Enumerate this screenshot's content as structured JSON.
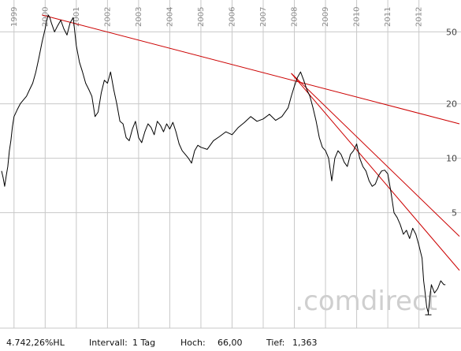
{
  "chart_data": {
    "type": "line",
    "title": "",
    "xlabel": "",
    "ylabel": "",
    "y_scale": "log",
    "ylim": [
      1.15,
      75
    ],
    "xlim": [
      1998.55,
      2013.35
    ],
    "x_tick_labels": [
      "1999",
      "2000",
      "2001",
      "2002",
      "2003",
      "2004",
      "2005",
      "2006",
      "2007",
      "2008",
      "2009",
      "2010",
      "2011",
      "2012"
    ],
    "y_ticks": [
      5,
      10,
      20,
      50
    ],
    "y_tick_labels": [
      "5",
      "10",
      "20",
      "50"
    ],
    "grid": true,
    "legend": "none",
    "series": [
      {
        "color": "#000000",
        "x": [
          1998.6,
          1998.65,
          1998.7,
          1998.75,
          1998.8,
          1998.85,
          1998.9,
          1998.95,
          1999.0,
          1999.1,
          1999.2,
          1999.3,
          1999.4,
          1999.5,
          1999.6,
          1999.7,
          1999.8,
          1999.9,
          2000.0,
          2000.05,
          2000.1,
          2000.15,
          2000.2,
          2000.3,
          2000.4,
          2000.5,
          2000.6,
          2000.7,
          2000.8,
          2000.9,
          2001.0,
          2001.1,
          2001.2,
          2001.3,
          2001.4,
          2001.5,
          2001.6,
          2001.7,
          2001.8,
          2001.9,
          2002.0,
          2002.1,
          2002.2,
          2002.3,
          2002.4,
          2002.5,
          2002.6,
          2002.7,
          2002.8,
          2002.9,
          2003.0,
          2003.1,
          2003.2,
          2003.3,
          2003.4,
          2003.5,
          2003.6,
          2003.7,
          2003.8,
          2003.9,
          2004.0,
          2004.1,
          2004.2,
          2004.3,
          2004.4,
          2004.5,
          2004.6,
          2004.7,
          2004.8,
          2004.9,
          2005.0,
          2005.2,
          2005.4,
          2005.6,
          2005.8,
          2006.0,
          2006.2,
          2006.4,
          2006.6,
          2006.8,
          2007.0,
          2007.2,
          2007.4,
          2007.6,
          2007.8,
          2007.9,
          2008.0,
          2008.1,
          2008.2,
          2008.3,
          2008.4,
          2008.5,
          2008.6,
          2008.7,
          2008.8,
          2008.9,
          2009.0,
          2009.1,
          2009.2,
          2009.3,
          2009.4,
          2009.5,
          2009.6,
          2009.7,
          2009.8,
          2009.9,
          2010.0,
          2010.1,
          2010.2,
          2010.3,
          2010.4,
          2010.5,
          2010.6,
          2010.7,
          2010.8,
          2010.9,
          2011.0,
          2011.1,
          2011.2,
          2011.3,
          2011.4,
          2011.5,
          2011.6,
          2011.7,
          2011.8,
          2011.9,
          2012.0,
          2012.1,
          2012.15,
          2012.2,
          2012.25,
          2012.3,
          2012.35,
          2012.4,
          2012.5,
          2012.6,
          2012.7,
          2012.8,
          2012.85
        ],
        "y": [
          8.5,
          7.8,
          7.0,
          8.0,
          9.0,
          11.0,
          12.5,
          15.0,
          17.0,
          18.5,
          20.0,
          21.0,
          22.0,
          24.0,
          26.0,
          30.0,
          36.0,
          44.0,
          52.0,
          58.0,
          62.0,
          60.0,
          56.0,
          50.0,
          54.0,
          58.0,
          52.0,
          48.0,
          56.0,
          60.0,
          42.0,
          34.0,
          30.0,
          26.0,
          24.0,
          22.0,
          17.0,
          18.0,
          23.0,
          27.0,
          26.0,
          30.0,
          24.0,
          20.0,
          16.0,
          15.5,
          13.0,
          12.5,
          14.5,
          16.0,
          13.0,
          12.2,
          14.0,
          15.5,
          14.8,
          13.5,
          16.0,
          15.2,
          14.0,
          15.5,
          14.5,
          15.8,
          14.0,
          12.0,
          11.0,
          10.5,
          10.0,
          9.4,
          11.0,
          11.8,
          11.5,
          11.2,
          12.5,
          13.2,
          14.0,
          13.5,
          14.8,
          15.8,
          17.0,
          16.0,
          16.5,
          17.5,
          16.2,
          17.0,
          19.0,
          22.0,
          25.0,
          28.0,
          30.0,
          27.0,
          24.0,
          22.0,
          19.0,
          16.0,
          13.0,
          11.5,
          11.0,
          10.0,
          7.5,
          10.0,
          11.0,
          10.5,
          9.5,
          9.0,
          10.5,
          11.0,
          12.0,
          10.0,
          9.0,
          8.5,
          7.5,
          7.0,
          7.2,
          8.0,
          8.5,
          8.6,
          8.2,
          6.5,
          5.0,
          4.7,
          4.3,
          3.8,
          4.0,
          3.6,
          4.1,
          3.8,
          3.3,
          2.8,
          2.1,
          1.8,
          1.5,
          1.4,
          1.7,
          2.0,
          1.8,
          1.9,
          2.1,
          2.0,
          2.0
        ]
      }
    ],
    "trendlines": [
      {
        "color": "#cc0000",
        "x": [
          1999.9,
          2013.3
        ],
        "y": [
          62.0,
          15.5
        ]
      },
      {
        "color": "#cc0000",
        "x": [
          2007.9,
          2013.3
        ],
        "y": [
          29.5,
          2.4
        ]
      },
      {
        "color": "#cc0000",
        "x": [
          2007.9,
          2013.3
        ],
        "y": [
          29.5,
          3.7
        ]
      }
    ]
  },
  "watermark": ".comdirect",
  "footer": {
    "performance": "4.742,26%HL",
    "interval_label": "Intervall:",
    "interval_value": "1 Tag",
    "high_label": "Hoch:",
    "high_value": "66,00",
    "low_label": "Tief:",
    "low_value": "1,363"
  },
  "colors": {
    "grid": "#c8c8c8",
    "price_line": "#000000",
    "trend_line": "#cc0000",
    "watermark": "#cfcfcf",
    "background": "#ffffff"
  }
}
